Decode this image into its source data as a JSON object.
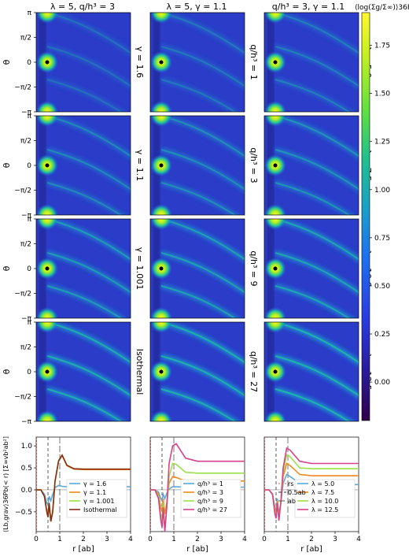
{
  "columns": [
    {
      "title": "λ = 5, q/h³ = 3"
    },
    {
      "title": "λ = 5, γ = 1.1"
    },
    {
      "title": "q/h³ = 3, γ = 1.1"
    }
  ],
  "row_labels": [
    [
      "γ = 1.6",
      "q/h³ = 1",
      "λ = 5.0"
    ],
    [
      "γ = 1.1",
      "q/h³ = 3",
      "λ = 7.5"
    ],
    [
      "γ = 1.001",
      "q/h³ = 9",
      "λ = 10.0"
    ],
    [
      "Isothermal",
      "q/h³ = 27",
      "λ = 12.5"
    ]
  ],
  "theta_ticks": [
    "π",
    "π/2",
    "0",
    "−π/2",
    "−π"
  ],
  "theta_label": "θ",
  "colorbar": {
    "label": "⟨log(Σg/Σ∞)⟩36Pb",
    "ticks": [
      "0.00",
      "0.25",
      "0.50",
      "0.75",
      "1.00",
      "1.25",
      "1.50",
      "1.75"
    ],
    "min": -0.2,
    "max": 1.92,
    "colors": [
      "#30004a",
      "#2a1a9a",
      "#2a3ce0",
      "#1e70f0",
      "#1aa0c8",
      "#20c090",
      "#60e040",
      "#c8f020",
      "#fff830"
    ]
  },
  "chart_data": [
    {
      "type": "line",
      "ylabel": "⟨Lb,grav⟩36Pb(< r) [Σ∞vb²ab²]",
      "xlabel": "r [ab]",
      "xlim": [
        0,
        4
      ],
      "ylim": [
        -0.95,
        1.2
      ],
      "xticks": [
        "0",
        "1",
        "2",
        "3",
        "4"
      ],
      "yticks": [
        "−0.5",
        "0.0",
        "0.5",
        "1.0"
      ],
      "series": [
        {
          "name": "γ = 1.6",
          "color": "#5fa8d6",
          "points": [
            [
              0,
              0
            ],
            [
              0.2,
              0
            ],
            [
              0.35,
              -0.1
            ],
            [
              0.45,
              -0.3
            ],
            [
              0.5,
              -0.35
            ],
            [
              0.55,
              -0.15
            ],
            [
              0.62,
              -0.25
            ],
            [
              0.7,
              -0.1
            ],
            [
              0.8,
              0.05
            ],
            [
              0.95,
              0.1
            ],
            [
              1.1,
              0.08
            ],
            [
              1.3,
              0.07
            ],
            [
              1.6,
              0.07
            ],
            [
              2,
              0.07
            ],
            [
              3,
              0.07
            ],
            [
              4,
              0.07
            ]
          ]
        },
        {
          "name": "γ = 1.1",
          "color": "#f08a1e",
          "points": [
            [
              0,
              0
            ],
            [
              0.2,
              0
            ],
            [
              0.35,
              -0.15
            ],
            [
              0.45,
              -0.5
            ],
            [
              0.5,
              -0.6
            ],
            [
              0.55,
              -0.3
            ],
            [
              0.62,
              -0.7
            ],
            [
              0.7,
              -0.5
            ],
            [
              0.8,
              0.2
            ],
            [
              0.95,
              0.65
            ],
            [
              1.1,
              0.78
            ],
            [
              1.3,
              0.55
            ],
            [
              1.6,
              0.47
            ],
            [
              2,
              0.46
            ],
            [
              3,
              0.46
            ],
            [
              4,
              0.46
            ]
          ]
        },
        {
          "name": "γ = 1.001",
          "color": "#9ae04a",
          "points": [
            [
              0,
              0
            ],
            [
              0.2,
              0
            ],
            [
              0.35,
              -0.15
            ],
            [
              0.45,
              -0.5
            ],
            [
              0.5,
              -0.62
            ],
            [
              0.55,
              -0.3
            ],
            [
              0.62,
              -0.72
            ],
            [
              0.7,
              -0.5
            ],
            [
              0.8,
              0.2
            ],
            [
              0.95,
              0.66
            ],
            [
              1.1,
              0.79
            ],
            [
              1.3,
              0.56
            ],
            [
              1.6,
              0.48
            ],
            [
              2,
              0.47
            ],
            [
              3,
              0.47
            ],
            [
              4,
              0.47
            ]
          ]
        },
        {
          "name": "Isothermal",
          "color": "#8a2a12",
          "points": [
            [
              0,
              0
            ],
            [
              0.2,
              0
            ],
            [
              0.35,
              -0.15
            ],
            [
              0.45,
              -0.5
            ],
            [
              0.5,
              -0.62
            ],
            [
              0.55,
              -0.3
            ],
            [
              0.62,
              -0.72
            ],
            [
              0.7,
              -0.5
            ],
            [
              0.8,
              0.2
            ],
            [
              0.95,
              0.66
            ],
            [
              1.1,
              0.79
            ],
            [
              1.3,
              0.56
            ],
            [
              1.6,
              0.48
            ],
            [
              2,
              0.47
            ],
            [
              3,
              0.47
            ],
            [
              4,
              0.47
            ]
          ]
        }
      ]
    },
    {
      "type": "line",
      "xlabel": "r [ab]",
      "xlim": [
        0,
        4
      ],
      "ylim": [
        -0.95,
        1.2
      ],
      "xticks": [
        "0",
        "1",
        "2",
        "3",
        "4"
      ],
      "series": [
        {
          "name": "q/h³ = 1",
          "color": "#5fa8d6",
          "points": [
            [
              0,
              0
            ],
            [
              0.2,
              0
            ],
            [
              0.35,
              -0.05
            ],
            [
              0.45,
              -0.2
            ],
            [
              0.5,
              -0.25
            ],
            [
              0.55,
              -0.1
            ],
            [
              0.62,
              -0.2
            ],
            [
              0.7,
              -0.08
            ],
            [
              0.8,
              0.02
            ],
            [
              0.95,
              0.07
            ],
            [
              1.1,
              0.07
            ],
            [
              1.5,
              0.06
            ],
            [
              2,
              0.06
            ],
            [
              3,
              0.06
            ],
            [
              4,
              0.06
            ]
          ]
        },
        {
          "name": "q/h³ = 3",
          "color": "#f08a1e",
          "points": [
            [
              0,
              0
            ],
            [
              0.2,
              0
            ],
            [
              0.35,
              -0.1
            ],
            [
              0.45,
              -0.4
            ],
            [
              0.5,
              -0.5
            ],
            [
              0.55,
              -0.2
            ],
            [
              0.62,
              -0.55
            ],
            [
              0.7,
              -0.3
            ],
            [
              0.8,
              0.15
            ],
            [
              0.95,
              0.3
            ],
            [
              1.1,
              0.28
            ],
            [
              1.5,
              0.2
            ],
            [
              2,
              0.2
            ],
            [
              3,
              0.2
            ],
            [
              4,
              0.2
            ]
          ]
        },
        {
          "name": "q/h³ = 9",
          "color": "#9ae04a",
          "points": [
            [
              0,
              0
            ],
            [
              0.2,
              0
            ],
            [
              0.35,
              -0.15
            ],
            [
              0.45,
              -0.6
            ],
            [
              0.5,
              -0.75
            ],
            [
              0.55,
              -0.3
            ],
            [
              0.62,
              -0.9
            ],
            [
              0.7,
              -0.4
            ],
            [
              0.8,
              0.3
            ],
            [
              0.95,
              0.6
            ],
            [
              1.1,
              0.58
            ],
            [
              1.5,
              0.4
            ],
            [
              2,
              0.38
            ],
            [
              3,
              0.38
            ],
            [
              4,
              0.38
            ]
          ]
        },
        {
          "name": "q/h³ = 27",
          "color": "#d8408a",
          "points": [
            [
              0,
              0
            ],
            [
              0.2,
              0
            ],
            [
              0.35,
              -0.2
            ],
            [
              0.45,
              -0.7
            ],
            [
              0.5,
              -0.85
            ],
            [
              0.55,
              -0.4
            ],
            [
              0.62,
              -0.95
            ],
            [
              0.7,
              -0.4
            ],
            [
              0.8,
              0.6
            ],
            [
              0.95,
              1.0
            ],
            [
              1.1,
              1.05
            ],
            [
              1.5,
              0.72
            ],
            [
              2,
              0.65
            ],
            [
              3,
              0.65
            ],
            [
              4,
              0.65
            ]
          ]
        }
      ]
    },
    {
      "type": "line",
      "xlabel": "r [ab]",
      "xlim": [
        0,
        4
      ],
      "ylim": [
        -0.95,
        1.2
      ],
      "xticks": [
        "0",
        "1",
        "2",
        "3",
        "4"
      ],
      "series": [
        {
          "name": "λ = 5.0",
          "color": "#5fa8d6",
          "points": [
            [
              0,
              0
            ],
            [
              0.2,
              0
            ],
            [
              0.35,
              -0.1
            ],
            [
              0.45,
              -0.4
            ],
            [
              0.5,
              -0.5
            ],
            [
              0.55,
              -0.2
            ],
            [
              0.62,
              -0.55
            ],
            [
              0.7,
              -0.3
            ],
            [
              0.8,
              0.15
            ],
            [
              0.95,
              0.35
            ],
            [
              1.1,
              0.3
            ],
            [
              1.5,
              0.15
            ],
            [
              2,
              0.12
            ],
            [
              3,
              0.12
            ],
            [
              4,
              0.12
            ]
          ]
        },
        {
          "name": "λ = 7.5",
          "color": "#f08a1e",
          "points": [
            [
              0,
              0
            ],
            [
              0.2,
              0
            ],
            [
              0.35,
              -0.1
            ],
            [
              0.45,
              -0.45
            ],
            [
              0.5,
              -0.55
            ],
            [
              0.55,
              -0.25
            ],
            [
              0.62,
              -0.6
            ],
            [
              0.7,
              -0.3
            ],
            [
              0.8,
              0.3
            ],
            [
              0.95,
              0.6
            ],
            [
              1.1,
              0.55
            ],
            [
              1.5,
              0.35
            ],
            [
              2,
              0.32
            ],
            [
              3,
              0.32
            ],
            [
              4,
              0.32
            ]
          ]
        },
        {
          "name": "λ = 10.0",
          "color": "#9ae04a",
          "points": [
            [
              0,
              0
            ],
            [
              0.2,
              0
            ],
            [
              0.35,
              -0.1
            ],
            [
              0.45,
              -0.5
            ],
            [
              0.5,
              -0.6
            ],
            [
              0.55,
              -0.3
            ],
            [
              0.62,
              -0.65
            ],
            [
              0.7,
              -0.3
            ],
            [
              0.8,
              0.4
            ],
            [
              0.95,
              0.8
            ],
            [
              1.1,
              0.75
            ],
            [
              1.5,
              0.5
            ],
            [
              2,
              0.48
            ],
            [
              3,
              0.48
            ],
            [
              4,
              0.48
            ]
          ]
        },
        {
          "name": "λ = 12.5",
          "color": "#d8408a",
          "points": [
            [
              0,
              0
            ],
            [
              0.2,
              0
            ],
            [
              0.35,
              -0.1
            ],
            [
              0.45,
              -0.55
            ],
            [
              0.5,
              -0.65
            ],
            [
              0.55,
              -0.3
            ],
            [
              0.62,
              -0.7
            ],
            [
              0.7,
              -0.3
            ],
            [
              0.8,
              0.5
            ],
            [
              0.95,
              0.95
            ],
            [
              1.1,
              0.9
            ],
            [
              1.5,
              0.65
            ],
            [
              2,
              0.6
            ],
            [
              3,
              0.6
            ],
            [
              4,
              0.6
            ]
          ]
        }
      ],
      "extra_legend": [
        {
          "name": "rs",
          "color": "#e05050",
          "dash": "2,2"
        },
        {
          "name": "0.5ab",
          "color": "#333333",
          "dash": "4,3"
        },
        {
          "name": "ab",
          "color": "#555555",
          "dash": "8,3"
        }
      ]
    }
  ]
}
